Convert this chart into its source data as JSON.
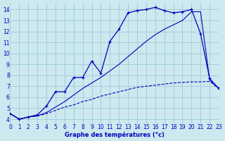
{
  "xlabel": "Graphe des températures (°c)",
  "background_color": "#cde8ef",
  "line_color": "#0000bb",
  "grid_color": "#99ccd9",
  "xlim": [
    0,
    23
  ],
  "ylim": [
    3.6,
    14.6
  ],
  "xticks": [
    0,
    1,
    2,
    3,
    4,
    5,
    6,
    7,
    8,
    9,
    10,
    11,
    12,
    13,
    14,
    15,
    16,
    17,
    18,
    19,
    20,
    21,
    22,
    23
  ],
  "yticks": [
    4,
    5,
    6,
    7,
    8,
    9,
    10,
    11,
    12,
    13,
    14
  ],
  "main_x": [
    0,
    1,
    2,
    3,
    4,
    5,
    6,
    7,
    8,
    9,
    10,
    11,
    12,
    13,
    14,
    15,
    16,
    17,
    18,
    19,
    20,
    21,
    22,
    23
  ],
  "main_y": [
    4.5,
    4.0,
    4.2,
    4.4,
    5.2,
    6.5,
    6.5,
    7.8,
    7.8,
    9.3,
    8.2,
    11.1,
    12.2,
    13.7,
    13.9,
    14.0,
    14.2,
    13.9,
    13.7,
    13.8,
    14.0,
    11.8,
    7.7,
    6.8
  ],
  "line2_x": [
    0,
    1,
    2,
    3,
    4,
    5,
    6,
    7,
    8,
    9,
    10,
    11,
    12,
    13,
    14,
    15,
    16,
    17,
    18,
    19,
    20,
    21,
    22,
    23
  ],
  "line2_y": [
    4.5,
    4.0,
    4.2,
    4.3,
    4.6,
    5.1,
    5.6,
    6.2,
    6.8,
    7.3,
    7.8,
    8.4,
    9.0,
    9.7,
    10.4,
    11.1,
    11.7,
    12.2,
    12.6,
    13.0,
    13.8,
    13.8,
    7.6,
    6.8
  ],
  "line3_x": [
    0,
    1,
    2,
    3,
    4,
    5,
    6,
    7,
    8,
    9,
    10,
    11,
    12,
    13,
    14,
    15,
    16,
    17,
    18,
    19,
    20,
    21,
    22,
    23
  ],
  "line3_y": [
    4.5,
    4.0,
    4.2,
    4.3,
    4.5,
    4.8,
    5.1,
    5.3,
    5.6,
    5.8,
    6.1,
    6.3,
    6.5,
    6.7,
    6.9,
    7.0,
    7.1,
    7.2,
    7.3,
    7.35,
    7.4,
    7.4,
    7.45,
    6.8
  ]
}
